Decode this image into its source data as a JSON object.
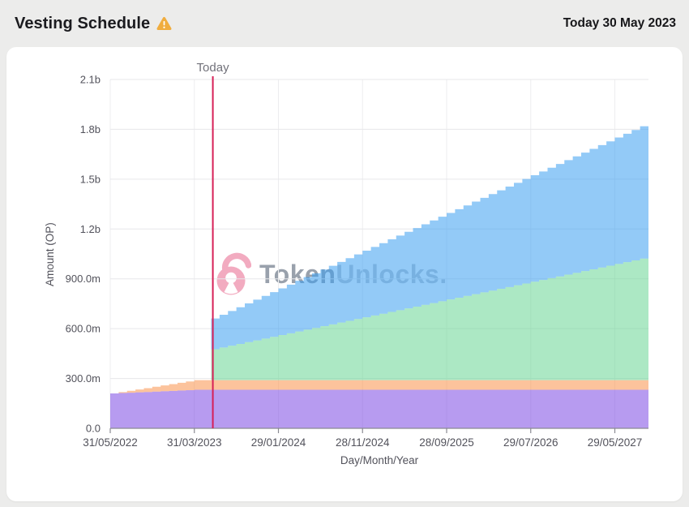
{
  "header": {
    "title": "Vesting Schedule",
    "warning_icon": "warning-triangle",
    "warning_color": "#f0ad3f",
    "today_date": "Today 30 May 2023"
  },
  "watermark": {
    "brand_bold": "Token",
    "brand_light": "Unlocks.",
    "lock_color": "#f2abc0"
  },
  "chart_data": {
    "type": "area",
    "stacked": true,
    "step": "after",
    "unit": "millions of OP tokens",
    "fill_opacity": 0.55,
    "background": "#ffffff",
    "grid": true,
    "grid_color": "#e7e7ea",
    "vgrid_color": "#ededef",
    "axis_color": "#8a8a93",
    "tick_text_color": "#52525b",
    "x_axis": {
      "label": "Day/Month/Year",
      "months": 64,
      "start_date": "31/05/2022",
      "ticks": [
        {
          "month": 0,
          "label": "31/05/2022"
        },
        {
          "month": 10,
          "label": "31/03/2023"
        },
        {
          "month": 20,
          "label": "29/01/2024"
        },
        {
          "month": 30,
          "label": "28/11/2024"
        },
        {
          "month": 40,
          "label": "28/09/2025"
        },
        {
          "month": 50,
          "label": "29/07/2026"
        },
        {
          "month": 60,
          "label": "29/05/2027"
        }
      ]
    },
    "y_axis": {
      "label": "Amount (OP)",
      "max": 2100,
      "ticks": [
        {
          "value": 0,
          "label": "0.0"
        },
        {
          "value": 300,
          "label": "300.0m"
        },
        {
          "value": 600,
          "label": "600.0m"
        },
        {
          "value": 900,
          "label": "900.0m"
        },
        {
          "value": 1200,
          "label": "1.2b"
        },
        {
          "value": 1500,
          "label": "1.5b"
        },
        {
          "value": 1800,
          "label": "1.8b"
        },
        {
          "value": 2100,
          "label": "2.1b"
        }
      ]
    },
    "today": {
      "label": "Today",
      "month": 12.2,
      "line_color": "#d61f56",
      "label_color": "#71717a"
    },
    "series": [
      {
        "name": "purple",
        "color": "#7c49e4",
        "values": [
          210,
          212.2,
          214.4,
          216.6,
          218.8,
          221,
          223.2,
          225.4,
          227.6,
          229.8,
          232,
          232,
          232,
          232,
          232,
          232,
          232,
          232,
          232,
          232,
          232,
          232,
          232,
          232,
          232,
          232,
          232,
          232,
          232,
          232,
          232,
          232,
          232,
          232,
          232,
          232,
          232,
          232,
          232,
          232,
          232,
          232,
          232,
          232,
          232,
          232,
          232,
          232,
          232,
          232,
          232,
          232,
          232,
          232,
          232,
          232,
          232,
          232,
          232,
          232,
          232,
          232,
          232,
          232
        ]
      },
      {
        "name": "orange",
        "color": "#fa924b",
        "values": [
          0,
          5.8,
          11.6,
          17.4,
          23.2,
          29,
          34.8,
          40.6,
          46.4,
          52.2,
          58,
          58,
          58,
          58,
          58,
          58,
          58,
          58,
          58,
          58,
          58,
          58,
          58,
          58,
          58,
          58,
          58,
          58,
          58,
          58,
          58,
          58,
          58,
          58,
          58,
          58,
          58,
          58,
          58,
          58,
          58,
          58,
          58,
          58,
          58,
          58,
          58,
          58,
          58,
          58,
          58,
          58,
          58,
          58,
          58,
          58,
          58,
          58,
          58,
          58,
          58,
          58,
          58,
          58
        ]
      },
      {
        "name": "green",
        "color": "#68d594",
        "values": [
          0,
          0,
          0,
          0,
          0,
          0,
          0,
          0,
          0,
          0,
          0,
          0,
          186,
          196.7,
          207.4,
          218.1,
          228.8,
          239.5,
          250.2,
          260.9,
          271.6,
          282.3,
          293,
          303.7,
          314.4,
          325.1,
          335.8,
          346.5,
          357.2,
          367.9,
          378.6,
          389.3,
          400,
          410.7,
          421.4,
          432.1,
          442.8,
          453.5,
          464.2,
          474.9,
          485.6,
          496.3,
          507,
          517.7,
          528.4,
          539.1,
          549.8,
          560.5,
          571.2,
          581.9,
          592.6,
          603.3,
          614,
          624.7,
          635.4,
          646.1,
          656.8,
          667.5,
          678.2,
          688.9,
          699.6,
          710.3,
          721,
          731.7
        ]
      },
      {
        "name": "blue",
        "color": "#3b9ef0",
        "values": [
          0,
          0,
          0,
          0,
          0,
          0,
          0,
          0,
          0,
          0,
          0,
          0,
          185,
          197,
          209,
          221,
          233,
          245,
          257,
          269,
          281,
          293,
          305,
          317,
          329,
          341,
          353,
          365,
          377,
          389,
          401,
          413,
          425,
          437,
          449,
          461,
          473,
          485,
          497,
          509,
          521,
          533,
          545,
          557,
          569,
          581,
          593,
          605,
          617,
          629,
          641,
          653,
          665,
          677,
          689,
          701,
          713,
          725,
          737,
          749,
          761,
          773,
          785,
          797
        ]
      }
    ]
  }
}
